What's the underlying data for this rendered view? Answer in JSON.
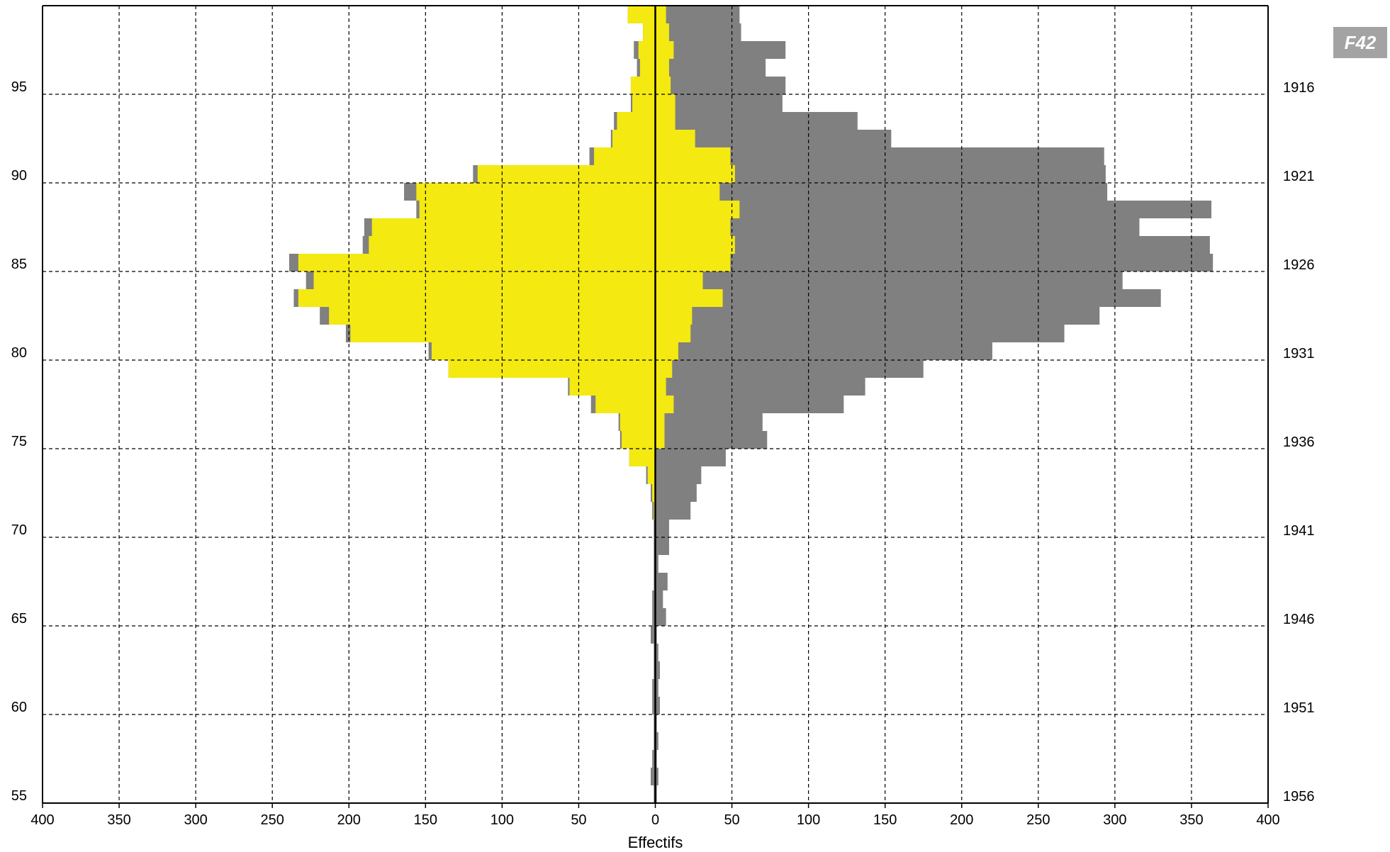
{
  "badge": "F42",
  "chart_data": {
    "type": "bar",
    "orientation": "horizontal",
    "subtype": "population-pyramid",
    "xlabel": "Effectifs",
    "x_ticks": [
      400,
      350,
      300,
      250,
      200,
      150,
      100,
      50,
      0,
      50,
      100,
      150,
      200,
      250,
      300,
      350,
      400
    ],
    "xlim": [
      -400,
      400
    ],
    "ylim": [
      55,
      100
    ],
    "left_axis_ticks": [
      55,
      60,
      65,
      70,
      75,
      80,
      85,
      90,
      95
    ],
    "right_axis_ticks": [
      {
        "age": 55,
        "label": "1956"
      },
      {
        "age": 60,
        "label": "1951"
      },
      {
        "age": 65,
        "label": "1946"
      },
      {
        "age": 70,
        "label": "1941"
      },
      {
        "age": 75,
        "label": "1936"
      },
      {
        "age": 80,
        "label": "1931"
      },
      {
        "age": 85,
        "label": "1926"
      },
      {
        "age": 90,
        "label": "1921"
      },
      {
        "age": 95,
        "label": "1916"
      }
    ],
    "grid": true,
    "colors": {
      "yellow": "#f4e911",
      "gray": "#808080",
      "grid": "#000000"
    },
    "ages": [
      99,
      98,
      97,
      96,
      95,
      94,
      93,
      92,
      91,
      90,
      89,
      88,
      87,
      86,
      85,
      84,
      83,
      82,
      81,
      80,
      79,
      78,
      77,
      76,
      75,
      74,
      73,
      72,
      71,
      70,
      69,
      68,
      67,
      66,
      65,
      64,
      63,
      62,
      61,
      60,
      59,
      58,
      57,
      56,
      55
    ],
    "series": [
      {
        "side": "left",
        "color": "#808080",
        "values": [
          18,
          8,
          14,
          12,
          16,
          16,
          27,
          29,
          43,
          119,
          164,
          156,
          190,
          191,
          239,
          228,
          236,
          219,
          202,
          148,
          135,
          57,
          42,
          24,
          23,
          17,
          6,
          3,
          2,
          1,
          1,
          1,
          1,
          2,
          2,
          3,
          1,
          1,
          2,
          2,
          1,
          1,
          2,
          3,
          1
        ]
      },
      {
        "side": "left",
        "color": "#f4e911",
        "values": [
          18,
          8,
          11,
          10,
          16,
          15,
          25,
          28,
          40,
          116,
          156,
          154,
          185,
          187,
          233,
          223,
          233,
          213,
          199,
          146,
          135,
          56,
          39,
          23,
          22,
          17,
          5,
          2,
          1,
          0,
          0,
          0,
          0,
          0,
          0,
          0,
          0,
          0,
          0,
          0,
          0,
          0,
          0,
          0,
          0
        ]
      },
      {
        "side": "right",
        "color": "#808080",
        "values": [
          55,
          56,
          85,
          72,
          85,
          83,
          132,
          154,
          293,
          294,
          295,
          363,
          316,
          362,
          364,
          305,
          330,
          290,
          267,
          220,
          175,
          137,
          123,
          70,
          73,
          46,
          30,
          27,
          23,
          9,
          9,
          2,
          8,
          5,
          7,
          1,
          2,
          3,
          2,
          3,
          1,
          2,
          1,
          2,
          1
        ]
      },
      {
        "side": "right",
        "color": "#f4e911",
        "values": [
          7,
          9,
          12,
          9,
          10,
          13,
          13,
          26,
          49,
          52,
          42,
          55,
          49,
          52,
          49,
          31,
          44,
          24,
          23,
          15,
          11,
          7,
          12,
          6,
          6,
          0,
          0,
          0,
          0,
          0,
          0,
          0,
          0,
          0,
          0,
          0,
          0,
          0,
          0,
          0,
          0,
          0,
          0,
          0,
          0
        ]
      }
    ]
  }
}
